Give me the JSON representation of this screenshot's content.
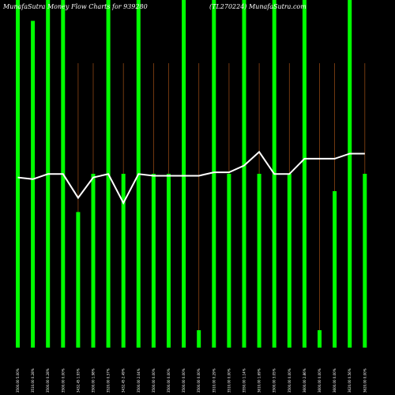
{
  "header": {
    "left_title": "MunafaSutra  Money Flow  Charts for 939280",
    "right_title": "(TL270224) MunafaSutra.com"
  },
  "chart_data": {
    "type": "bar",
    "title": "MunafaSutra  Money Flow  Charts for 939280",
    "subtitle": "(TL270224) MunafaSutra.com",
    "categories": [
      "3500.00 5.00%",
      "3510.00 0.28%",
      "3500.00 0.28%",
      "3500.00 0.00%",
      "3432.45 1.93%",
      "3500.00 1.98%",
      "3520.00 0.57%",
      "3432.45 2.49%",
      "3500.00 2.04%",
      "3500.00 0.00%",
      "3500.00 0.00%",
      "3500.00 0.00%",
      "3500.00 0.00%",
      "3510.00 0.29%",
      "3510.00 0.00%",
      "3550.00 1.14%",
      "3610.00 1.69%",
      "3500.00 3.05%",
      "3500.00 0.00%",
      "3600.00 2.86%",
      "3600.00 0.00%",
      "3600.00 0.00%",
      "3620.00 0.56%",
      "3620.00 0.00%"
    ],
    "series": [
      {
        "kind": "bars",
        "color": "#00ff00",
        "values": [
          100,
          94,
          100,
          100,
          39,
          50,
          100,
          50,
          100,
          50,
          50,
          100,
          5,
          100,
          50,
          100,
          50,
          100,
          50,
          100,
          5,
          45,
          100,
          50
        ]
      },
      {
        "kind": "line",
        "color": "#ffffff",
        "values": [
          3500,
          3499,
          3502,
          3502,
          3488,
          3500,
          3502,
          3485,
          3502,
          3501,
          3501,
          3501,
          3501,
          3503,
          3503,
          3507,
          3515,
          3502,
          3502,
          3511,
          3511,
          3511,
          3514,
          3514
        ]
      }
    ],
    "ylim": [
      0,
      100
    ],
    "grid": false,
    "legend": "none",
    "background": "#000000",
    "thin_line_color": "#8b4513"
  }
}
